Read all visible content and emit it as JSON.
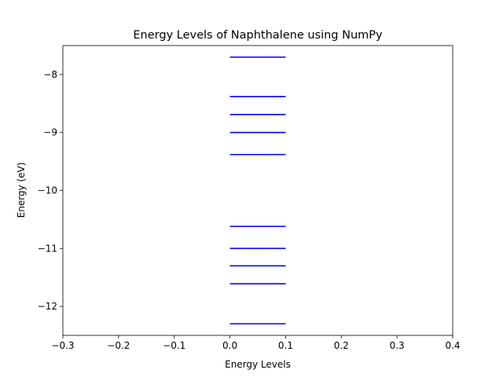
{
  "chart_data": {
    "type": "line",
    "title": "Energy Levels of Naphthalene using NumPy",
    "xlabel": "Energy Levels",
    "ylabel": "Energy (eV)",
    "xlim": [
      -0.3,
      0.4
    ],
    "ylim": [
      -12.5,
      -7.5
    ],
    "x_ticks": [
      -0.3,
      -0.2,
      -0.1,
      0.0,
      0.1,
      0.2,
      0.3,
      0.4
    ],
    "x_tick_labels": [
      "−0.3",
      "−0.2",
      "−0.1",
      "0.0",
      "0.1",
      "0.2",
      "0.3",
      "0.4"
    ],
    "y_ticks": [
      -12,
      -11,
      -10,
      -9,
      -8
    ],
    "y_tick_labels": [
      "−12",
      "−11",
      "−10",
      "−9",
      "−8"
    ],
    "level_x_range": [
      0.0,
      0.1
    ],
    "levels": [
      -7.7,
      -8.38,
      -8.69,
      -9.0,
      -9.38,
      -10.62,
      -11.0,
      -11.3,
      -11.61,
      -12.3
    ],
    "line_color": "#0000ff",
    "grid": false,
    "legend": "none"
  }
}
